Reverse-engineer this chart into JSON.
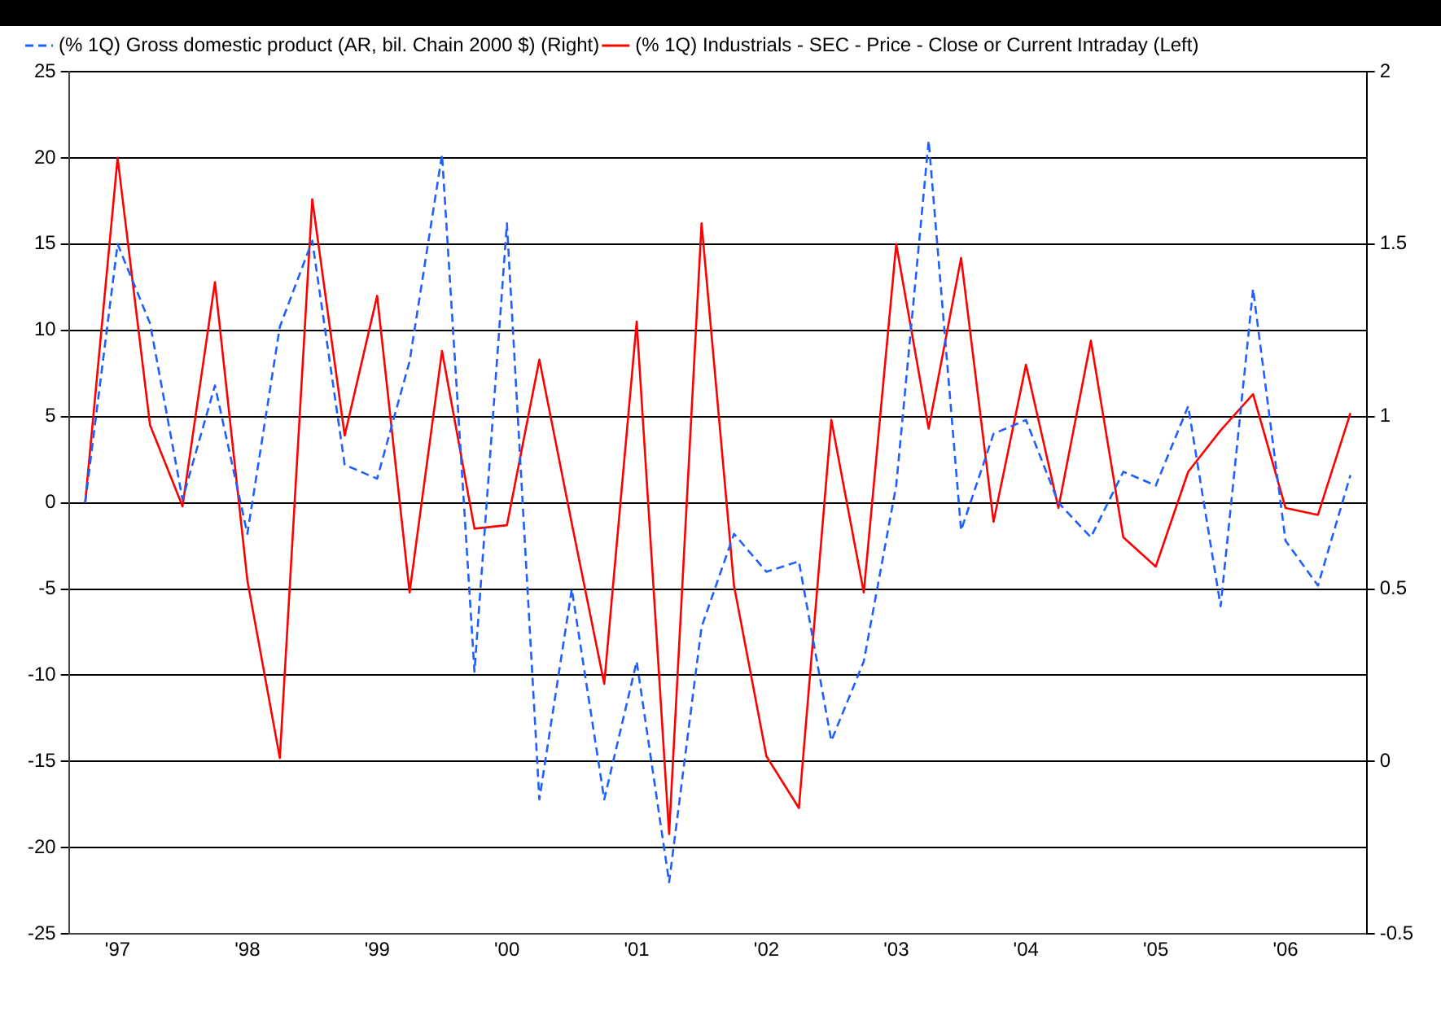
{
  "chart_data": {
    "type": "line",
    "categories": [
      null,
      "'97",
      null,
      null,
      null,
      "'98",
      null,
      null,
      null,
      "'99",
      null,
      null,
      null,
      "'00",
      null,
      null,
      null,
      "'01",
      null,
      null,
      null,
      "'02",
      null,
      null,
      null,
      "'03",
      null,
      null,
      null,
      "'04",
      null,
      null,
      null,
      "'05",
      null,
      null,
      null,
      "'06",
      null,
      null
    ],
    "series": [
      {
        "name": "(% 1Q) Gross domestic product (AR, bil. Chain 2000 $) (Right)",
        "color": "#1f5fff",
        "axis": "y2",
        "line_style": "dashed",
        "values": [
          0.75,
          1.5,
          1.27,
          0.76,
          1.09,
          0.66,
          1.26,
          1.51,
          0.86,
          0.82,
          1.16,
          1.76,
          0.26,
          1.56,
          -0.11,
          0.5,
          -0.11,
          0.29,
          -0.35,
          0.39,
          0.66,
          0.55,
          0.58,
          0.06,
          0.29,
          0.8,
          1.8,
          0.67,
          0.95,
          0.99,
          0.75,
          0.65,
          0.84,
          0.8,
          1.03,
          0.45,
          1.37,
          0.64,
          0.51,
          0.83
        ]
      },
      {
        "name": "(% 1Q) Industrials - SEC - Price - Close or Current Intraday (Left)",
        "color": "#ff0000",
        "line_style": "solid",
        "values": [
          0,
          20,
          4.5,
          -0.2,
          12.8,
          -4.5,
          -14.8,
          17.6,
          3.9,
          12,
          -5.2,
          8.8,
          -1.5,
          -1.3,
          8.3,
          -1.2,
          -10.5,
          10.5,
          -19.2,
          16.2,
          -4.8,
          -14.7,
          -17.7,
          4.8,
          -5.2,
          15,
          4.3,
          14.2,
          -1.1,
          8,
          -0.3,
          9.4,
          -2,
          -3.7,
          1.8,
          4.2,
          6.3,
          -0.3,
          -0.7,
          5.2
        ]
      }
    ],
    "ylim": [
      -25,
      25
    ],
    "yticks": [
      -25,
      -20,
      -15,
      -10,
      -5,
      0,
      5,
      10,
      15,
      20,
      25
    ],
    "y2lim": [
      -0.5,
      2
    ],
    "y2ticks": [
      -0.5,
      0,
      0.5,
      1,
      1.5,
      2
    ],
    "grid": "y",
    "legend": "top left",
    "marker": "none"
  }
}
